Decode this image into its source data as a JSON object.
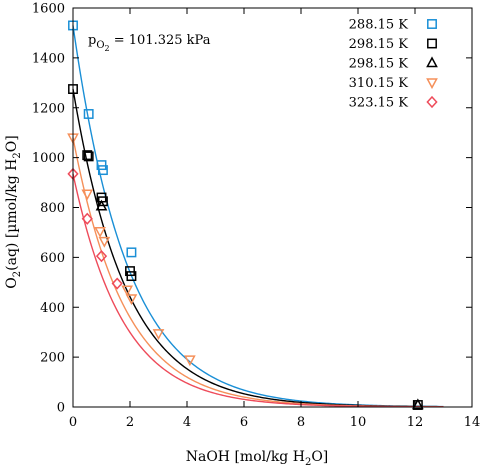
{
  "chart_data": {
    "type": "scatter",
    "xlabel_main": "NaOH [mol/kg H",
    "xlabel_sub": "2",
    "xlabel_end": "O]",
    "ylabel_main": "O",
    "ylabel_sub1": "2",
    "ylabel_mid": "(aq) [µmol/kg H",
    "ylabel_sub2": "2",
    "ylabel_end": "O]",
    "annotation_main": "p",
    "annotation_sub": "O",
    "annotation_subsub": "2",
    "annotation_rest": " = 101.325 kPa",
    "xlim": [
      0,
      14
    ],
    "ylim": [
      0,
      1600
    ],
    "xticks": [
      "0",
      "2",
      "4",
      "6",
      "8",
      "10",
      "12",
      "14"
    ],
    "yticks": [
      "0",
      "200",
      "400",
      "600",
      "800",
      "1000",
      "1200",
      "1400",
      "1600"
    ],
    "grid": false,
    "legend_position": "top-right",
    "series": [
      {
        "name": "288.15 K",
        "marker": "square",
        "color": "#1a8fd6",
        "points": [
          [
            0,
            1530
          ],
          [
            0.55,
            1175
          ],
          [
            1.0,
            970
          ],
          [
            1.05,
            950
          ],
          [
            2.05,
            620
          ]
        ],
        "curve": [
          1530,
          0.52
        ]
      },
      {
        "name": "298.15 K",
        "marker": "square",
        "color": "#000000",
        "points": [
          [
            0,
            1275
          ],
          [
            0.5,
            1010
          ],
          [
            0.55,
            1005
          ],
          [
            1.0,
            840
          ],
          [
            1.05,
            825
          ],
          [
            2.0,
            545
          ],
          [
            2.05,
            525
          ],
          [
            12.1,
            8
          ]
        ],
        "curve": [
          1275,
          0.53
        ]
      },
      {
        "name": "298.15 K",
        "marker": "triangle-up",
        "color": "#000000",
        "points": [
          [
            1.0,
            805
          ],
          [
            12.1,
            8
          ]
        ],
        "curve": null
      },
      {
        "name": "310.15 K",
        "marker": "triangle-down",
        "color": "#f5905a",
        "points": [
          [
            0,
            1080
          ],
          [
            0.5,
            855
          ],
          [
            0.95,
            705
          ],
          [
            1.1,
            665
          ],
          [
            1.9,
            470
          ],
          [
            2.05,
            435
          ],
          [
            3.0,
            295
          ],
          [
            4.1,
            190
          ]
        ],
        "curve": [
          1080,
          0.55
        ]
      },
      {
        "name": "323.15 K",
        "marker": "diamond",
        "color": "#ee4b5a",
        "points": [
          [
            0,
            935
          ],
          [
            0.5,
            755
          ],
          [
            1.0,
            605
          ],
          [
            1.55,
            495
          ]
        ],
        "curve": [
          935,
          0.57
        ]
      }
    ]
  }
}
